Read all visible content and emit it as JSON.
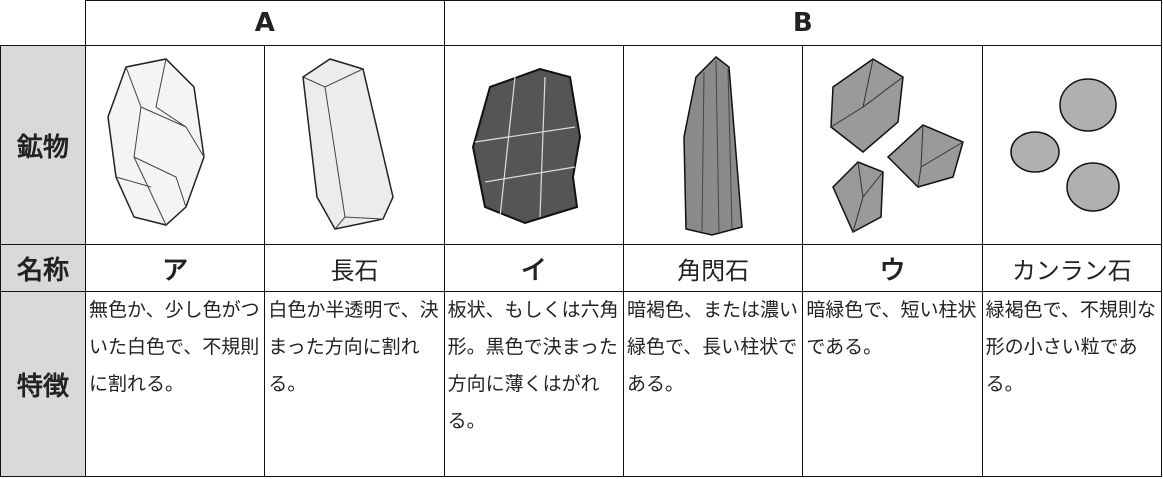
{
  "table": {
    "groups": [
      "A",
      "B"
    ],
    "row_labels": [
      "鉱物",
      "名称",
      "特徴"
    ],
    "names": [
      "ア",
      "長石",
      "イ",
      "角閃石",
      "ウ",
      "カンラン石"
    ],
    "features": [
      "無色か、少し色がついた白色で、不規則に割れる。",
      "白色か半透明で、決まった方向に割れる。",
      "板状、もしくは六角形。黒色で決まった方向に薄くはがれる。",
      "暗褐色、または濃い緑色で、長い柱状である。",
      "暗緑色で、短い柱状である。",
      "緑褐色で、不規則な形の小さい粒である。"
    ]
  }
}
